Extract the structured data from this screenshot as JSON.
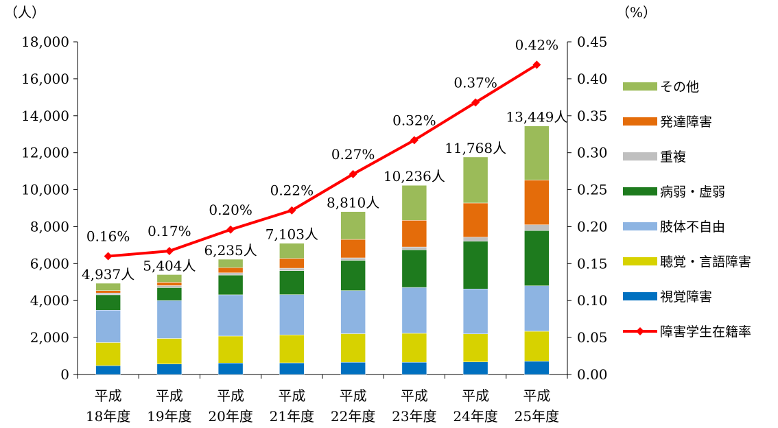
{
  "chart_data": {
    "type": "bar",
    "stacked": true,
    "categories": [
      [
        "平成",
        "18年度"
      ],
      [
        "平成",
        "19年度"
      ],
      [
        "平成",
        "20年度"
      ],
      [
        "平成",
        "21年度"
      ],
      [
        "平成",
        "22年度"
      ],
      [
        "平成",
        "23年度"
      ],
      [
        "平成",
        "24年度"
      ],
      [
        "平成",
        "25年度"
      ]
    ],
    "y_left_unit": "（人）",
    "y_right_unit": "（%）",
    "y_left_range": [
      0,
      18000
    ],
    "y_left_ticks": [
      "0",
      "2,000",
      "4,000",
      "6,000",
      "8,000",
      "10,000",
      "12,000",
      "14,000",
      "16,000",
      "18,000"
    ],
    "y_right_range": [
      0,
      0.45
    ],
    "y_right_ticks": [
      "0.00",
      "0.05",
      "0.10",
      "0.15",
      "0.20",
      "0.25",
      "0.30",
      "0.35",
      "0.40",
      "0.45"
    ],
    "series": [
      {
        "name": "視覚障害",
        "color": "#0070C0",
        "values": [
          480,
          570,
          620,
          630,
          660,
          660,
          680,
          720
        ]
      },
      {
        "name": "聴覚・言語障害",
        "color": "#D7D200",
        "values": [
          1250,
          1380,
          1460,
          1510,
          1550,
          1570,
          1520,
          1620
        ]
      },
      {
        "name": "肢体不自由",
        "color": "#8DB4E2",
        "values": [
          1750,
          2050,
          2230,
          2180,
          2330,
          2480,
          2430,
          2460
        ]
      },
      {
        "name": "病弱・虚弱",
        "color": "#1E7B1E",
        "values": [
          830,
          700,
          1070,
          1300,
          1640,
          2040,
          2580,
          2990
        ]
      },
      {
        "name": "重複",
        "color": "#BFBFBF",
        "values": [
          100,
          110,
          120,
          130,
          130,
          150,
          220,
          310
        ]
      },
      {
        "name": "発達障害",
        "color": "#E46C0A",
        "values": [
          130,
          180,
          280,
          530,
          1000,
          1440,
          1850,
          2420
        ]
      },
      {
        "name": "その他",
        "color": "#9BBB59",
        "values": [
          397,
          414,
          455,
          823,
          1500,
          1896,
          2488,
          2929
        ]
      }
    ],
    "totals": [
      "4,937人",
      "5,404人",
      "6,235人",
      "7,103人",
      "8,810人",
      "10,236人",
      "11,768人",
      "13,449人"
    ],
    "line": {
      "name": "障害学生在籍率",
      "color": "#FF0000",
      "values": [
        0.16,
        0.167,
        0.196,
        0.222,
        0.271,
        0.317,
        0.368,
        0.419
      ],
      "labels": [
        "0.16%",
        "0.17%",
        "0.20%",
        "0.22%",
        "0.27%",
        "0.32%",
        "0.37%",
        "0.42%"
      ]
    },
    "legend_order": [
      "その他",
      "発達障害",
      "重複",
      "病弱・虚弱",
      "肢体不自由",
      "聴覚・言語障害",
      "視覚障害",
      "障害学生在籍率"
    ],
    "legend_position": "right"
  }
}
